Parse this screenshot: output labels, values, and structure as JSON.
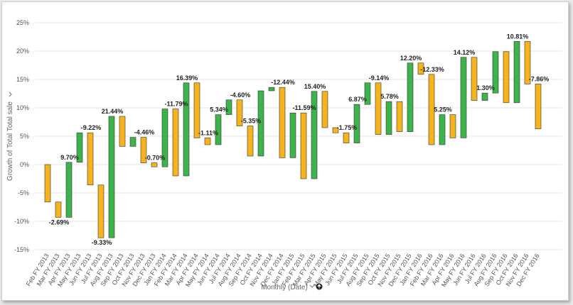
{
  "chart_data": {
    "type": "bar",
    "subtype": "floating-waterfall",
    "title": "",
    "xlabel": "Monthly (Date)",
    "ylabel": "Growth of Total Total sale",
    "ylim": [
      -15,
      25
    ],
    "yticks": [
      -15,
      -10,
      -5,
      0,
      5,
      10,
      15,
      20,
      25
    ],
    "ytick_labels": [
      "-15%",
      "-10%",
      "-5%",
      "0%",
      "5%",
      "10%",
      "15%",
      "20%",
      "25%"
    ],
    "grid": "horizontal",
    "colors": {
      "increase": "#3cb44b",
      "decrease": "#f5b41e",
      "edge": "#333333"
    },
    "categories": [
      "Feb FY 2013",
      "Mar FY 2013",
      "Apr FY 2013",
      "May FY 2013",
      "Jun FY 2013",
      "Jul FY 2013",
      "Aug FY 2013",
      "Sep FY 2013",
      "Oct FY 2013",
      "Nov FY 2013",
      "Dec FY 2013",
      "Jan FY 2014",
      "Feb FY 2014",
      "Mar FY 2014",
      "Apr FY 2014",
      "May FY 2014",
      "Jun FY 2014",
      "Jul FY 2014",
      "Aug FY 2014",
      "Sep FY 2014",
      "Oct FY 2014",
      "Nov FY 2014",
      "Dec FY 2014",
      "Jan FY 2015",
      "Feb FY 2015",
      "Mar FY 2015",
      "Apr FY 2015",
      "May FY 2015",
      "Jun FY 2015",
      "Jul FY 2015",
      "Aug FY 2015",
      "Sep FY 2015",
      "Oct FY 2015",
      "Nov FY 2015",
      "Dec FY 2015",
      "Jan FY 2016",
      "Feb FY 2016",
      "Mar FY 2016",
      "Apr FY 2016",
      "May FY 2016",
      "Jun FY 2016",
      "Jul FY 2016",
      "Aug FY 2016",
      "Sep FY 2016",
      "Oct FY 2016",
      "Nov FY 2016",
      "Dec FY 2016"
    ],
    "bars": [
      {
        "start": 0.0,
        "end": -6.6
      },
      {
        "start": -6.6,
        "end": -9.3,
        "label": "-2.69%",
        "label_pos": "below"
      },
      {
        "start": -9.3,
        "end": 0.4,
        "label": "9.70%"
      },
      {
        "start": 0.4,
        "end": 5.6
      },
      {
        "start": 5.6,
        "end": -3.6,
        "label": "-9.22%"
      },
      {
        "start": -3.6,
        "end": -12.9,
        "label": "-9.33%",
        "label_pos": "below"
      },
      {
        "start": -12.9,
        "end": 8.5,
        "label": "21.44%"
      },
      {
        "start": 8.5,
        "end": 3.2
      },
      {
        "start": 3.2,
        "end": 4.8
      },
      {
        "start": 4.8,
        "end": 0.3,
        "label": "-4.46%"
      },
      {
        "start": 0.3,
        "end": -0.4,
        "label": "-0.70%"
      },
      {
        "start": -0.4,
        "end": 9.8
      },
      {
        "start": 9.8,
        "end": -2.0,
        "label": "-11.79%"
      },
      {
        "start": -2.0,
        "end": 14.4,
        "label": "16.39%"
      },
      {
        "start": 14.4,
        "end": 4.7
      },
      {
        "start": 4.7,
        "end": 3.5,
        "label": "-1.11%"
      },
      {
        "start": 3.5,
        "end": 8.8,
        "label": "5.34%"
      },
      {
        "start": 8.8,
        "end": 11.4
      },
      {
        "start": 11.4,
        "end": 6.8,
        "label": "-4.60%"
      },
      {
        "start": 6.8,
        "end": 1.5,
        "label": "-5.35%"
      },
      {
        "start": 1.5,
        "end": 13.0
      },
      {
        "start": 13.0,
        "end": 13.6
      },
      {
        "start": 13.6,
        "end": 1.2,
        "label": "-12.44%"
      },
      {
        "start": 1.2,
        "end": 9.1
      },
      {
        "start": 9.1,
        "end": -2.5,
        "label": "-11.59%"
      },
      {
        "start": -2.5,
        "end": 12.9,
        "label": "15.40%"
      },
      {
        "start": 12.9,
        "end": 6.5
      },
      {
        "start": 6.5,
        "end": 5.6
      },
      {
        "start": 5.6,
        "end": 3.8,
        "label": "-1.75%"
      },
      {
        "start": 3.8,
        "end": 10.6,
        "label": "6.87%"
      },
      {
        "start": 10.6,
        "end": 14.4
      },
      {
        "start": 14.4,
        "end": 5.3,
        "label": "-9.14%"
      },
      {
        "start": 5.3,
        "end": 11.1,
        "label": "5.78%"
      },
      {
        "start": 11.1,
        "end": 5.8
      },
      {
        "start": 5.8,
        "end": 17.9,
        "label": "12.20%"
      },
      {
        "start": 17.9,
        "end": 15.9
      },
      {
        "start": 15.9,
        "end": 3.5,
        "label": "-12.33%"
      },
      {
        "start": 3.5,
        "end": 8.8,
        "label": "5.25%"
      },
      {
        "start": 8.8,
        "end": 4.7
      },
      {
        "start": 4.7,
        "end": 18.9,
        "label": "14.12%"
      },
      {
        "start": 18.9,
        "end": 11.3
      },
      {
        "start": 11.3,
        "end": 12.6,
        "label": "1.30%"
      },
      {
        "start": 12.6,
        "end": 19.9
      },
      {
        "start": 19.9,
        "end": 10.9
      },
      {
        "start": 10.9,
        "end": 21.7,
        "label": "10.81%"
      },
      {
        "start": 21.7,
        "end": 14.2
      },
      {
        "start": 14.2,
        "end": 6.3,
        "label": "-7.86%"
      }
    ]
  },
  "axis_menu_icon": "chevron-down-icon",
  "sort_icon": "sort-circle-icon"
}
